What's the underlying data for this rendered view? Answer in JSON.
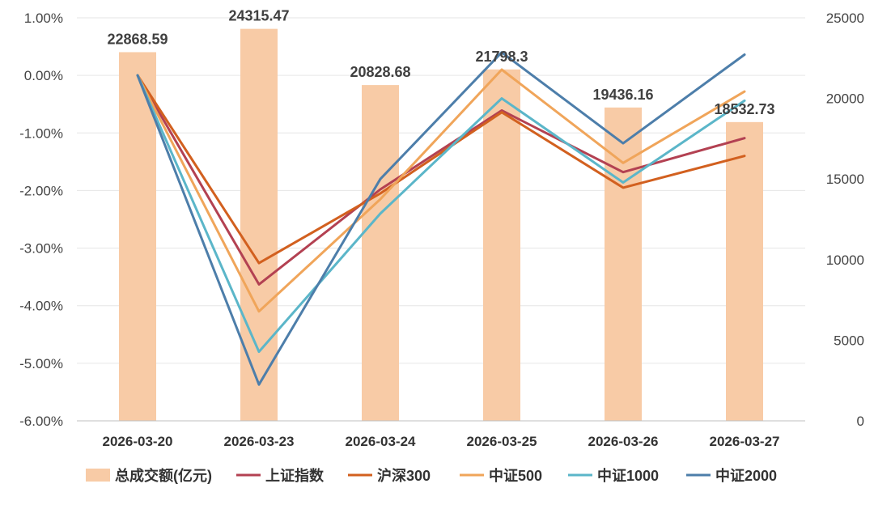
{
  "chart_data": {
    "type": "bar+line",
    "categories": [
      "2026-03-20",
      "2026-03-23",
      "2026-03-24",
      "2026-03-25",
      "2026-03-26",
      "2026-03-27"
    ],
    "bar_series": {
      "name": "总成交额(亿元)",
      "values": [
        22868.59,
        24315.47,
        20828.68,
        21798.3,
        19436.16,
        18532.73
      ],
      "labels": [
        "22868.59",
        "24315.47",
        "20828.68",
        "21798.3",
        "19436.16",
        "18532.73"
      ],
      "color": "#f8cba6",
      "axis": "right"
    },
    "line_series": [
      {
        "name": "上证指数",
        "color": "#b34152",
        "values": [
          0.0,
          -3.63,
          -1.98,
          -0.61,
          -1.68,
          -1.09
        ]
      },
      {
        "name": "沪深300",
        "color": "#d2601f",
        "values": [
          0.0,
          -3.26,
          -2.05,
          -0.64,
          -1.95,
          -1.4
        ]
      },
      {
        "name": "中证500",
        "color": "#f0a55a",
        "values": [
          0.0,
          -4.1,
          -2.15,
          0.1,
          -1.52,
          -0.28
        ]
      },
      {
        "name": "中证1000",
        "color": "#5bb6c9",
        "values": [
          0.0,
          -4.8,
          -2.4,
          -0.4,
          -1.86,
          -0.44
        ]
      },
      {
        "name": "中证2000",
        "color": "#4d7eaa",
        "values": [
          0.0,
          -5.37,
          -1.8,
          0.4,
          -1.18,
          0.36
        ]
      }
    ],
    "y_left": {
      "min": -6,
      "max": 1,
      "step": 1,
      "tick_labels": [
        "1.00%",
        "0.00%",
        "-1.00%",
        "-2.00%",
        "-3.00%",
        "-4.00%",
        "-5.00%",
        "-6.00%"
      ]
    },
    "y_right": {
      "min": 0,
      "max": 25000,
      "step": 5000,
      "tick_labels": [
        "25000",
        "20000",
        "15000",
        "10000",
        "5000",
        "0"
      ]
    },
    "grid": true,
    "legend_position": "bottom"
  }
}
